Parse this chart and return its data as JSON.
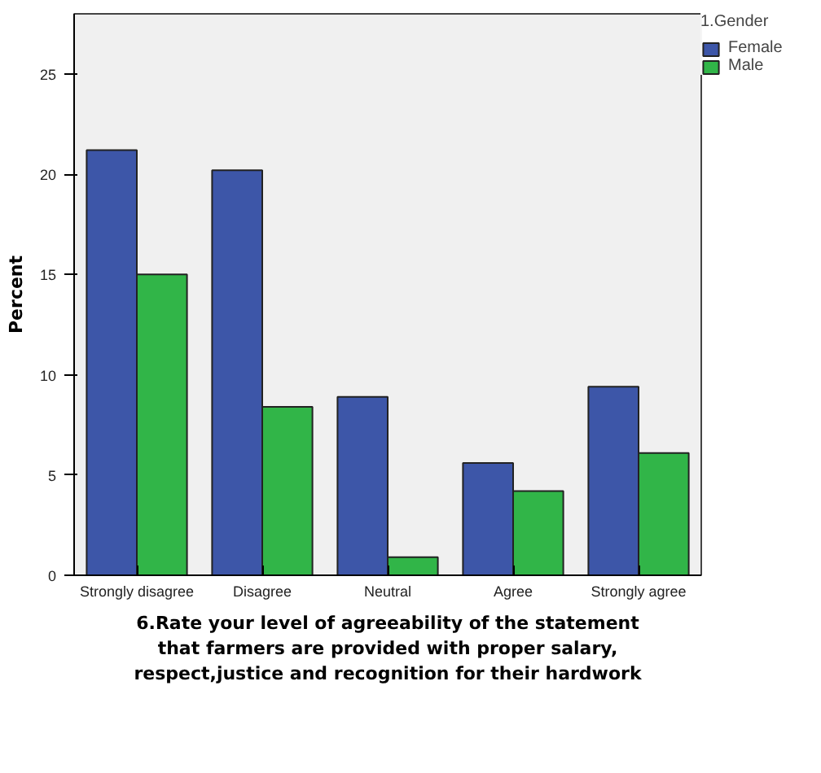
{
  "chart_data": {
    "type": "bar",
    "xlabel": "6.Rate your level of agreeability of the statement\nthat farmers are provided with proper salary,\nrespect,justice and recognition for their hardwork",
    "ylabel": "Percent",
    "legend_title": "1.Gender",
    "categories": [
      "Strongly disagree",
      "Disagree",
      "Neutral",
      "Agree",
      "Strongly agree"
    ],
    "series": [
      {
        "name": "Female",
        "color": "#3d56a8",
        "values": [
          21.2,
          20.2,
          8.9,
          5.6,
          9.4
        ]
      },
      {
        "name": "Male",
        "color": "#31b548",
        "values": [
          15.0,
          8.4,
          0.9,
          4.2,
          6.1
        ]
      }
    ],
    "ylim": [
      0,
      28
    ],
    "yticks": [
      0,
      5,
      10,
      15,
      20,
      25
    ],
    "grid": false,
    "legend": "top right"
  }
}
